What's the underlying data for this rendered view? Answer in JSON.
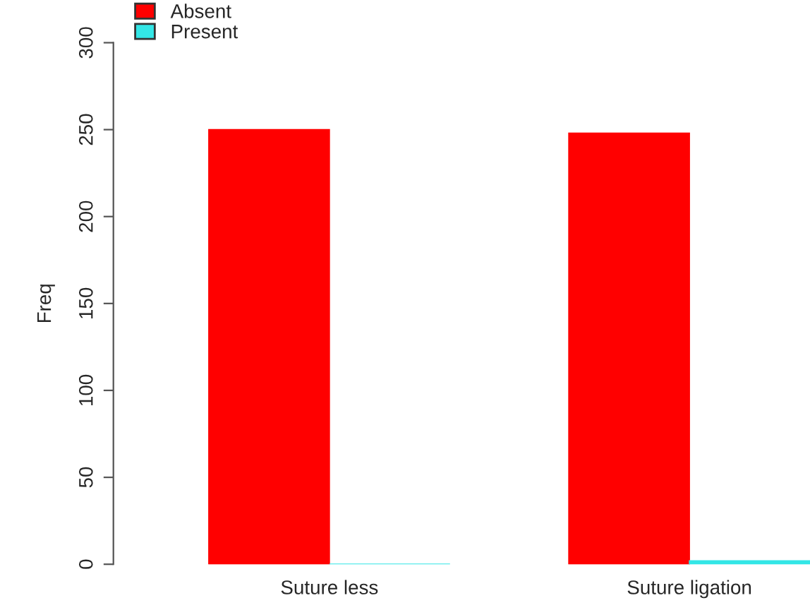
{
  "chart_data": {
    "type": "bar",
    "ylabel": "Freq",
    "categories": [
      "Suture less",
      "Suture ligation"
    ],
    "series": [
      {
        "name": "Absent",
        "color": "#ff0000",
        "values": [
          250,
          248
        ]
      },
      {
        "name": "Present",
        "color": "#33e6e6",
        "values": [
          0,
          2
        ]
      }
    ],
    "ylim": [
      0,
      300
    ],
    "yticks": [
      0,
      50,
      100,
      150,
      200,
      250,
      300
    ],
    "grid": false,
    "legend": "top left"
  }
}
